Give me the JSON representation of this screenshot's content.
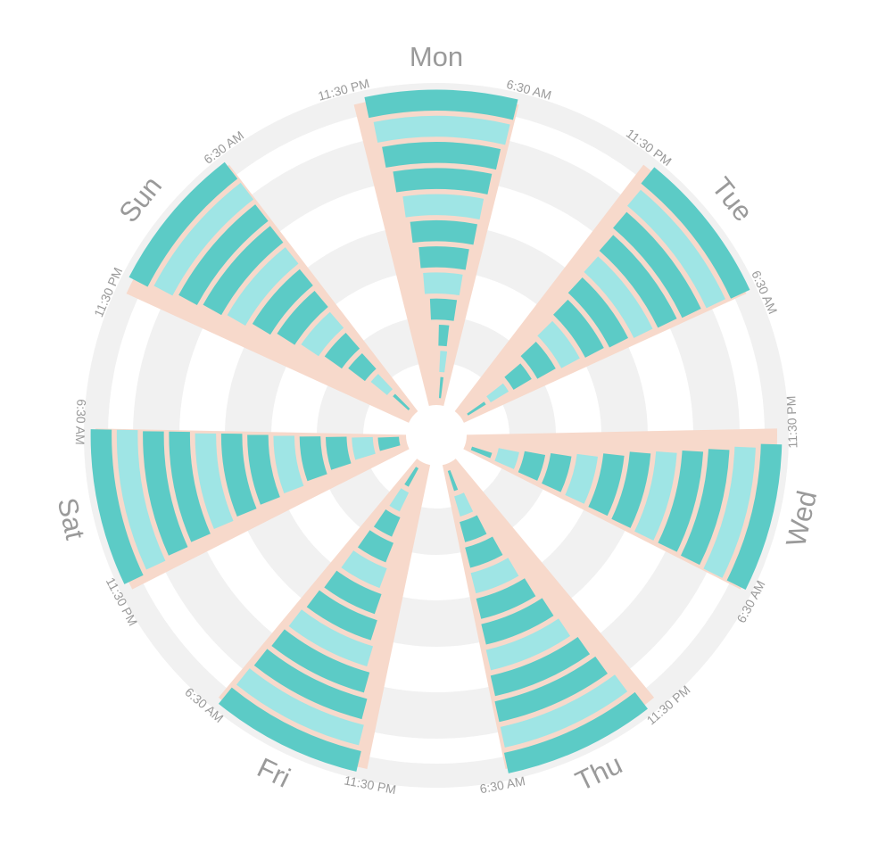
{
  "chart_data": {
    "type": "radial",
    "window_start_label": "11:30 PM",
    "window_end_label": "6:30 AM",
    "weeks": 12,
    "colors": {
      "background": "#ffffff",
      "ring_band": "#f1f1f1",
      "window": "#f7d9cb",
      "sleep": "#5ccbc6",
      "sleep_light": "#9fe5e5"
    },
    "days": [
      {
        "name": "Mon",
        "nights": [
          {
            "bed": "4:00 AM",
            "wake": "4:45 AM"
          },
          {
            "bed": "3:40 AM",
            "wake": "4:50 AM"
          },
          {
            "bed": "3:20 AM",
            "wake": "4:40 AM"
          },
          {
            "bed": "2:20 AM",
            "wake": "5:10 AM"
          },
          {
            "bed": "1:50 AM",
            "wake": "5:20 AM"
          },
          {
            "bed": "1:40 AM",
            "wake": "5:30 AM"
          },
          {
            "bed": "1:15 AM",
            "wake": "5:45 AM"
          },
          {
            "bed": "1:00 AM",
            "wake": "5:50 AM"
          },
          {
            "bed": "12:40 AM",
            "wake": "6:00 AM"
          },
          {
            "bed": "12:20 AM",
            "wake": "6:10 AM"
          },
          {
            "bed": "12:10 AM",
            "wake": "6:20 AM"
          },
          {
            "bed": "12:00 AM",
            "wake": "6:25 AM"
          }
        ]
      },
      {
        "name": "Tue",
        "nights": [
          {
            "bed": "3:50 AM",
            "wake": "4:40 AM"
          },
          {
            "bed": "3:10 AM",
            "wake": "4:50 AM"
          },
          {
            "bed": "2:30 AM",
            "wake": "5:00 AM"
          },
          {
            "bed": "1:50 AM",
            "wake": "5:20 AM"
          },
          {
            "bed": "1:30 AM",
            "wake": "5:35 AM"
          },
          {
            "bed": "1:10 AM",
            "wake": "5:45 AM"
          },
          {
            "bed": "12:50 AM",
            "wake": "5:55 AM"
          },
          {
            "bed": "12:40 AM",
            "wake": "6:05 AM"
          },
          {
            "bed": "12:30 AM",
            "wake": "6:10 AM"
          },
          {
            "bed": "12:15 AM",
            "wake": "6:15 AM"
          },
          {
            "bed": "12:05 AM",
            "wake": "6:20 AM"
          },
          {
            "bed": "11:55 PM",
            "wake": "6:25 AM"
          }
        ]
      },
      {
        "name": "Wed",
        "nights": [
          {
            "bed": "4:10 AM",
            "wake": "5:30 AM"
          },
          {
            "bed": "2:40 AM",
            "wake": "5:40 AM"
          },
          {
            "bed": "2:20 AM",
            "wake": "5:50 AM"
          },
          {
            "bed": "2:00 AM",
            "wake": "5:55 AM"
          },
          {
            "bed": "1:40 AM",
            "wake": "6:00 AM"
          },
          {
            "bed": "1:20 AM",
            "wake": "6:05 AM"
          },
          {
            "bed": "1:00 AM",
            "wake": "6:10 AM"
          },
          {
            "bed": "12:50 AM",
            "wake": "6:15 AM"
          },
          {
            "bed": "12:40 AM",
            "wake": "6:15 AM"
          },
          {
            "bed": "12:30 AM",
            "wake": "6:20 AM"
          },
          {
            "bed": "12:20 AM",
            "wake": "6:25 AM"
          },
          {
            "bed": "12:10 AM",
            "wake": "6:25 AM"
          }
        ]
      },
      {
        "name": "Thu",
        "nights": [
          {
            "bed": "4:00 AM",
            "wake": "5:00 AM"
          },
          {
            "bed": "3:00 AM",
            "wake": "5:20 AM"
          },
          {
            "bed": "2:40 AM",
            "wake": "5:40 AM"
          },
          {
            "bed": "2:10 AM",
            "wake": "5:50 AM"
          },
          {
            "bed": "1:50 AM",
            "wake": "5:55 AM"
          },
          {
            "bed": "1:30 AM",
            "wake": "6:00 AM"
          },
          {
            "bed": "1:10 AM",
            "wake": "6:05 AM"
          },
          {
            "bed": "1:00 AM",
            "wake": "6:10 AM"
          },
          {
            "bed": "12:40 AM",
            "wake": "6:15 AM"
          },
          {
            "bed": "12:30 AM",
            "wake": "6:20 AM"
          },
          {
            "bed": "12:15 AM",
            "wake": "6:20 AM"
          },
          {
            "bed": "12:00 AM",
            "wake": "6:25 AM"
          }
        ]
      },
      {
        "name": "Fri",
        "nights": [
          {
            "bed": "3:40 AM",
            "wake": "4:50 AM"
          },
          {
            "bed": "3:00 AM",
            "wake": "5:00 AM"
          },
          {
            "bed": "2:30 AM",
            "wake": "5:10 AM"
          },
          {
            "bed": "2:00 AM",
            "wake": "5:20 AM"
          },
          {
            "bed": "1:40 AM",
            "wake": "5:30 AM"
          },
          {
            "bed": "1:20 AM",
            "wake": "5:40 AM"
          },
          {
            "bed": "1:00 AM",
            "wake": "5:50 AM"
          },
          {
            "bed": "12:45 AM",
            "wake": "6:00 AM"
          },
          {
            "bed": "12:30 AM",
            "wake": "6:05 AM"
          },
          {
            "bed": "12:15 AM",
            "wake": "6:10 AM"
          },
          {
            "bed": "12:05 AM",
            "wake": "6:15 AM"
          },
          {
            "bed": "11:55 PM",
            "wake": "6:20 AM"
          }
        ]
      },
      {
        "name": "Sat",
        "nights": [
          {
            "bed": "2:20 AM",
            "wake": "5:40 AM"
          },
          {
            "bed": "2:00 AM",
            "wake": "5:50 AM"
          },
          {
            "bed": "1:40 AM",
            "wake": "6:00 AM"
          },
          {
            "bed": "1:20 AM",
            "wake": "6:05 AM"
          },
          {
            "bed": "1:00 AM",
            "wake": "6:10 AM"
          },
          {
            "bed": "12:50 AM",
            "wake": "6:15 AM"
          },
          {
            "bed": "12:40 AM",
            "wake": "6:20 AM"
          },
          {
            "bed": "12:30 AM",
            "wake": "6:20 AM"
          },
          {
            "bed": "12:20 AM",
            "wake": "6:25 AM"
          },
          {
            "bed": "12:10 AM",
            "wake": "6:25 AM"
          },
          {
            "bed": "12:00 AM",
            "wake": "6:28 AM"
          },
          {
            "bed": "11:50 PM",
            "wake": "6:28 AM"
          }
        ]
      },
      {
        "name": "Sun",
        "nights": [
          {
            "bed": "3:50 AM",
            "wake": "4:40 AM"
          },
          {
            "bed": "3:10 AM",
            "wake": "5:00 AM"
          },
          {
            "bed": "2:40 AM",
            "wake": "5:20 AM"
          },
          {
            "bed": "2:10 AM",
            "wake": "5:30 AM"
          },
          {
            "bed": "1:50 AM",
            "wake": "5:40 AM"
          },
          {
            "bed": "1:30 AM",
            "wake": "5:50 AM"
          },
          {
            "bed": "1:10 AM",
            "wake": "6:00 AM"
          },
          {
            "bed": "12:50 AM",
            "wake": "6:10 AM"
          },
          {
            "bed": "12:40 AM",
            "wake": "6:15 AM"
          },
          {
            "bed": "12:30 AM",
            "wake": "6:20 AM"
          },
          {
            "bed": "12:20 AM",
            "wake": "6:25 AM"
          },
          {
            "bed": "12:10 AM",
            "wake": "6:25 AM"
          }
        ]
      }
    ]
  }
}
